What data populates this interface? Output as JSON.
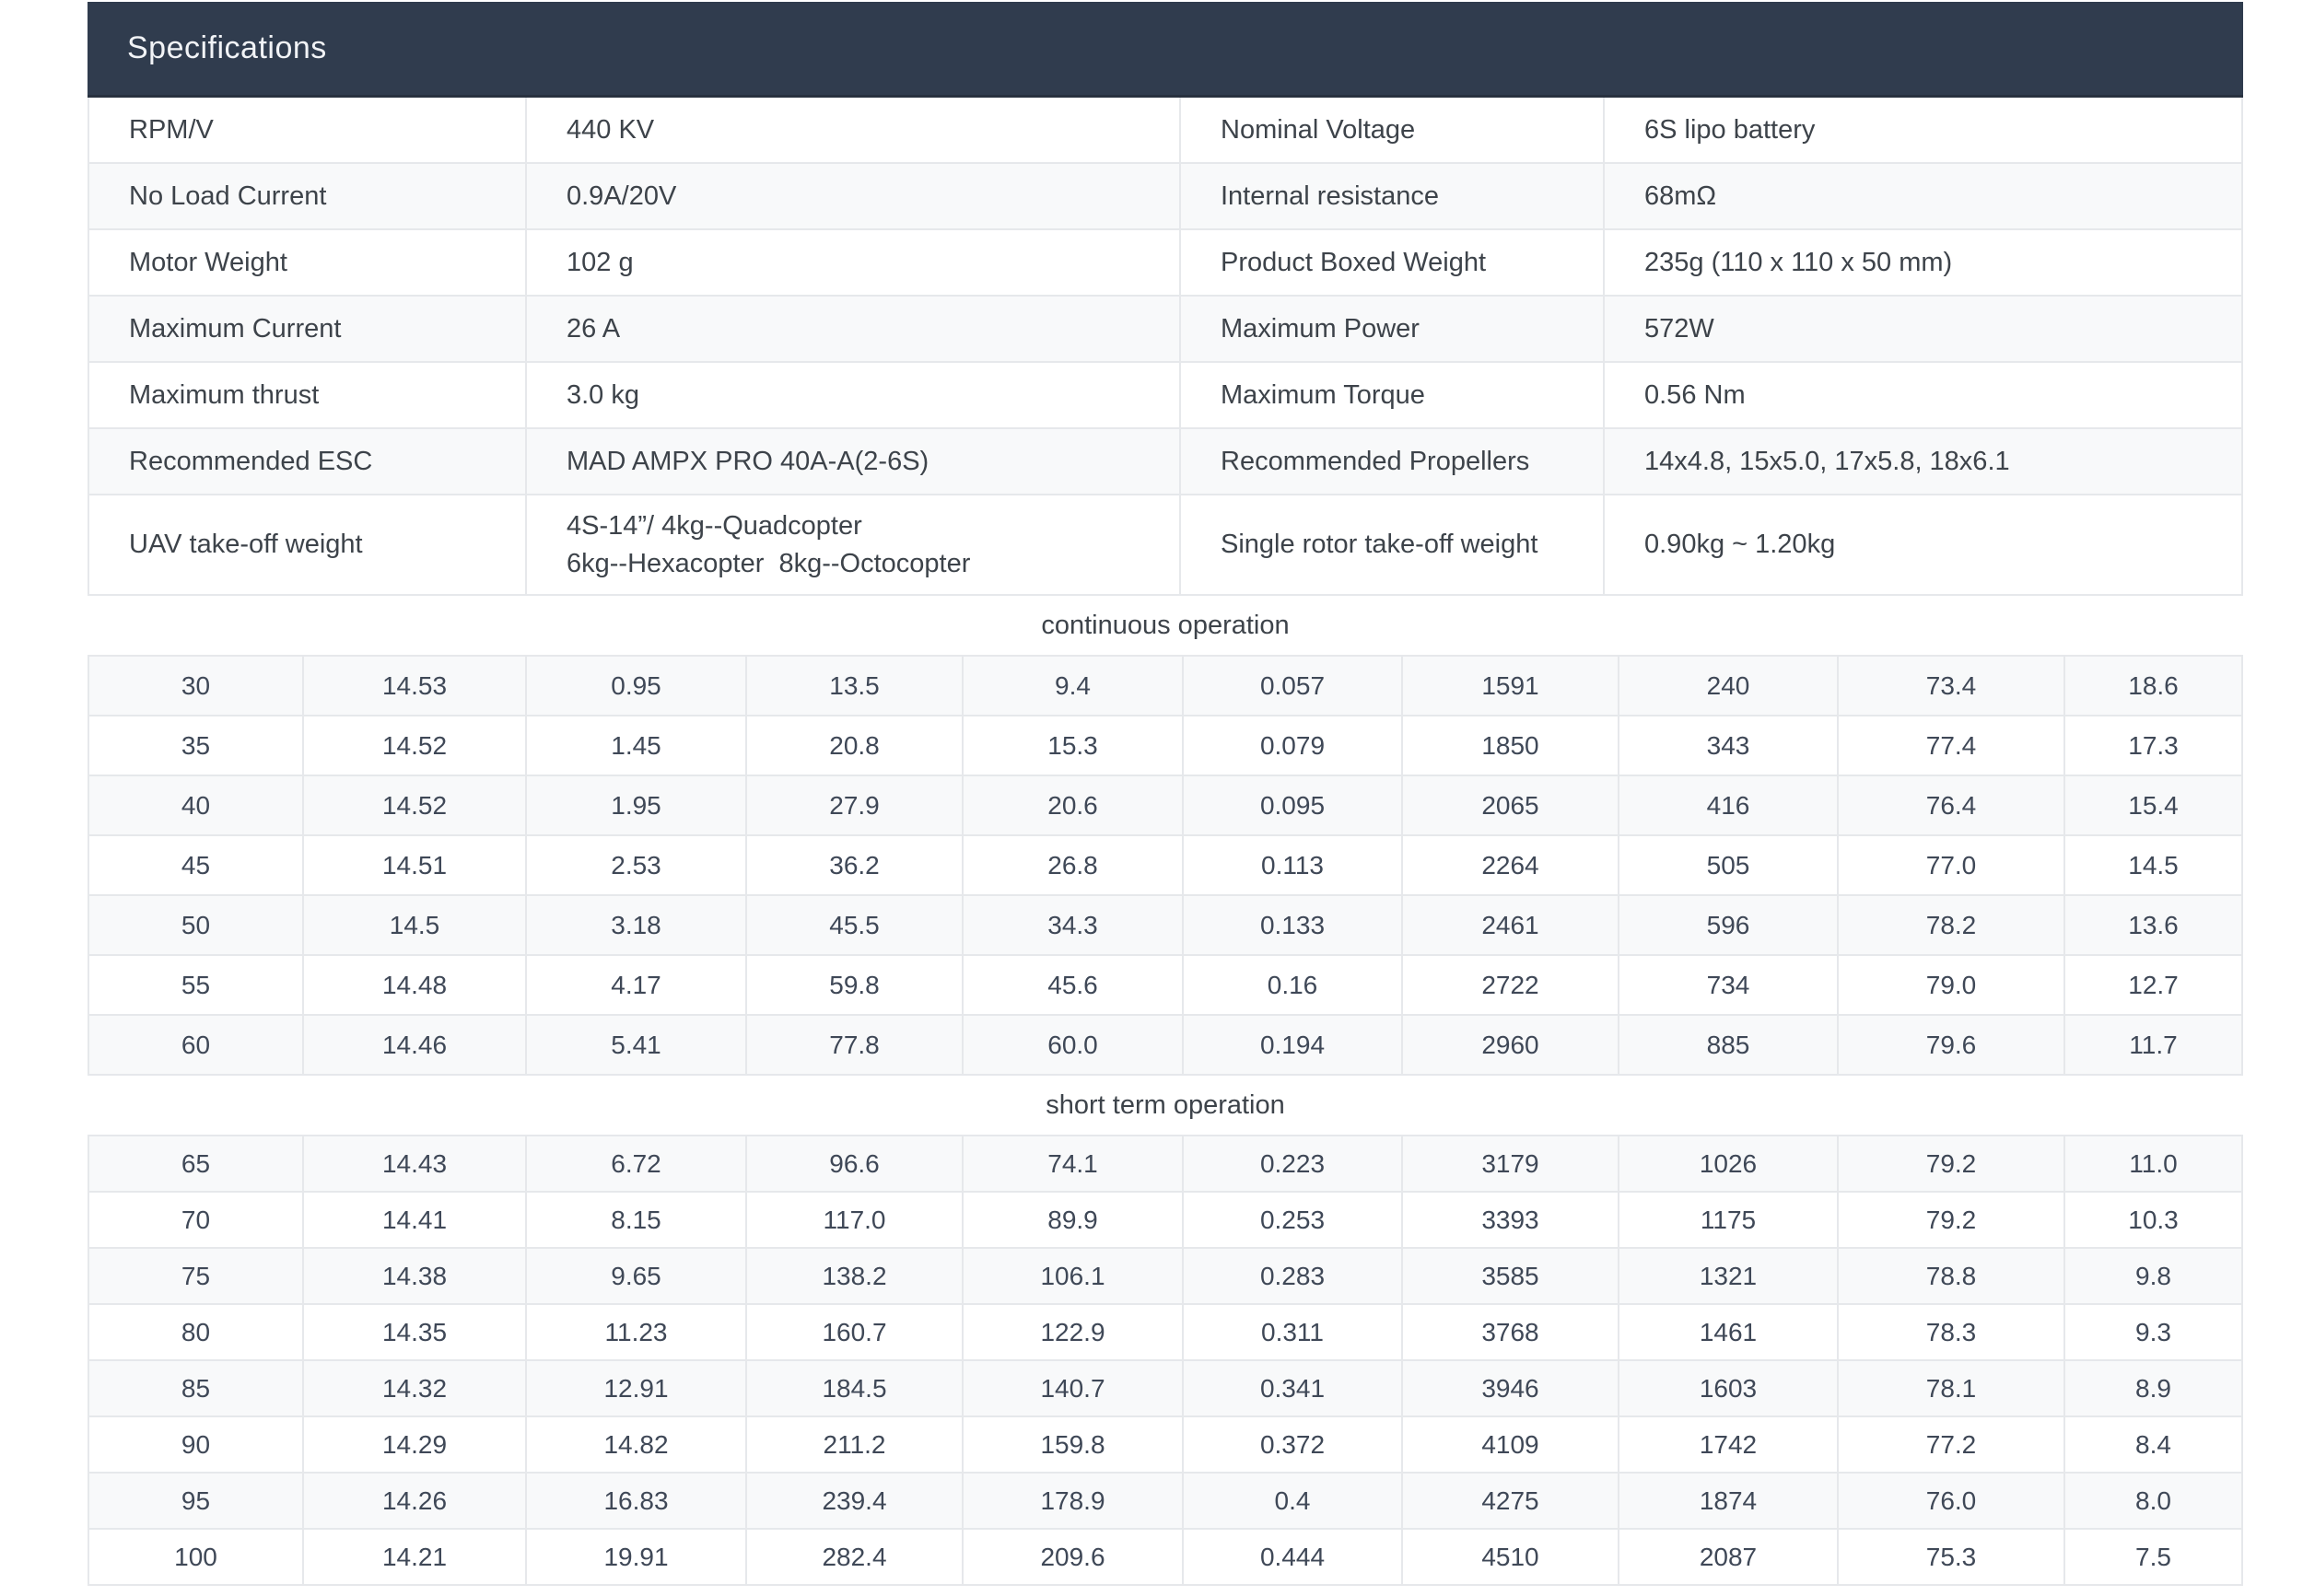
{
  "page": {
    "title": "Specifications"
  },
  "colors": {
    "header_bg": "#303C4E",
    "header_text": "#F1F3F6",
    "border": "#E6E8EB",
    "zebra_row": "#F8F9FA",
    "label_text": "#3D434A",
    "number_text": "#3F4857"
  },
  "spec_table": {
    "rows": [
      {
        "left_label": "RPM/V",
        "left_value": [
          "440 KV"
        ],
        "right_label": "Nominal Voltage",
        "right_value": "6S lipo battery"
      },
      {
        "left_label": "No Load Current",
        "left_value": [
          "0.9A/20V"
        ],
        "right_label": "Internal resistance",
        "right_value": "68mΩ"
      },
      {
        "left_label": "Motor Weight",
        "left_value": [
          "102 g"
        ],
        "right_label": "Product Boxed Weight",
        "right_value": "235g (110 x 110 x 50 mm)"
      },
      {
        "left_label": "Maximum Current",
        "left_value": [
          "26 A"
        ],
        "right_label": "Maximum Power",
        "right_value": "572W"
      },
      {
        "left_label": "Maximum thrust",
        "left_value": [
          "3.0 kg"
        ],
        "right_label": "Maximum Torque",
        "right_value": "0.56 Nm"
      },
      {
        "left_label": "Recommended ESC",
        "left_value": [
          "MAD AMPX PRO 40A-A(2-6S)"
        ],
        "right_label": "Recommended Propellers",
        "right_value": "14x4.8,  15x5.0,  17x5.8,  18x6.1"
      },
      {
        "left_label": "UAV take-off weight",
        "left_value": [
          "4S-14”/ 4kg--Quadcopter",
          "6kg--Hexacopter  8kg--Octocopter"
        ],
        "right_label": "Single rotor take-off weight",
        "right_value": "0.90kg ~ 1.20kg"
      }
    ]
  },
  "performance_table": {
    "sections": [
      {
        "label": "continuous operation",
        "rows": [
          [
            "30",
            "14.53",
            "0.95",
            "13.5",
            "9.4",
            "0.057",
            "1591",
            "240",
            "73.4",
            "18.6"
          ],
          [
            "35",
            "14.52",
            "1.45",
            "20.8",
            "15.3",
            "0.079",
            "1850",
            "343",
            "77.4",
            "17.3"
          ],
          [
            "40",
            "14.52",
            "1.95",
            "27.9",
            "20.6",
            "0.095",
            "2065",
            "416",
            "76.4",
            "15.4"
          ],
          [
            "45",
            "14.51",
            "2.53",
            "36.2",
            "26.8",
            "0.113",
            "2264",
            "505",
            "77.0",
            "14.5"
          ],
          [
            "50",
            "14.5",
            "3.18",
            "45.5",
            "34.3",
            "0.133",
            "2461",
            "596",
            "78.2",
            "13.6"
          ],
          [
            "55",
            "14.48",
            "4.17",
            "59.8",
            "45.6",
            "0.16",
            "2722",
            "734",
            "79.0",
            "12.7"
          ],
          [
            "60",
            "14.46",
            "5.41",
            "77.8",
            "60.0",
            "0.194",
            "2960",
            "885",
            "79.6",
            "11.7"
          ]
        ]
      },
      {
        "label": "short term operation",
        "rows": [
          [
            "65",
            "14.43",
            "6.72",
            "96.6",
            "74.1",
            "0.223",
            "3179",
            "1026",
            "79.2",
            "11.0"
          ],
          [
            "70",
            "14.41",
            "8.15",
            "117.0",
            "89.9",
            "0.253",
            "3393",
            "1175",
            "79.2",
            "10.3"
          ],
          [
            "75",
            "14.38",
            "9.65",
            "138.2",
            "106.1",
            "0.283",
            "3585",
            "1321",
            "78.8",
            "9.8"
          ],
          [
            "80",
            "14.35",
            "11.23",
            "160.7",
            "122.9",
            "0.311",
            "3768",
            "1461",
            "78.3",
            "9.3"
          ],
          [
            "85",
            "14.32",
            "12.91",
            "184.5",
            "140.7",
            "0.341",
            "3946",
            "1603",
            "78.1",
            "8.9"
          ],
          [
            "90",
            "14.29",
            "14.82",
            "211.2",
            "159.8",
            "0.372",
            "4109",
            "1742",
            "77.2",
            "8.4"
          ],
          [
            "95",
            "14.26",
            "16.83",
            "239.4",
            "178.9",
            "0.4",
            "4275",
            "1874",
            "76.0",
            "8.0"
          ],
          [
            "100",
            "14.21",
            "19.91",
            "282.4",
            "209.6",
            "0.444",
            "4510",
            "2087",
            "75.3",
            "7.5"
          ]
        ]
      }
    ]
  }
}
